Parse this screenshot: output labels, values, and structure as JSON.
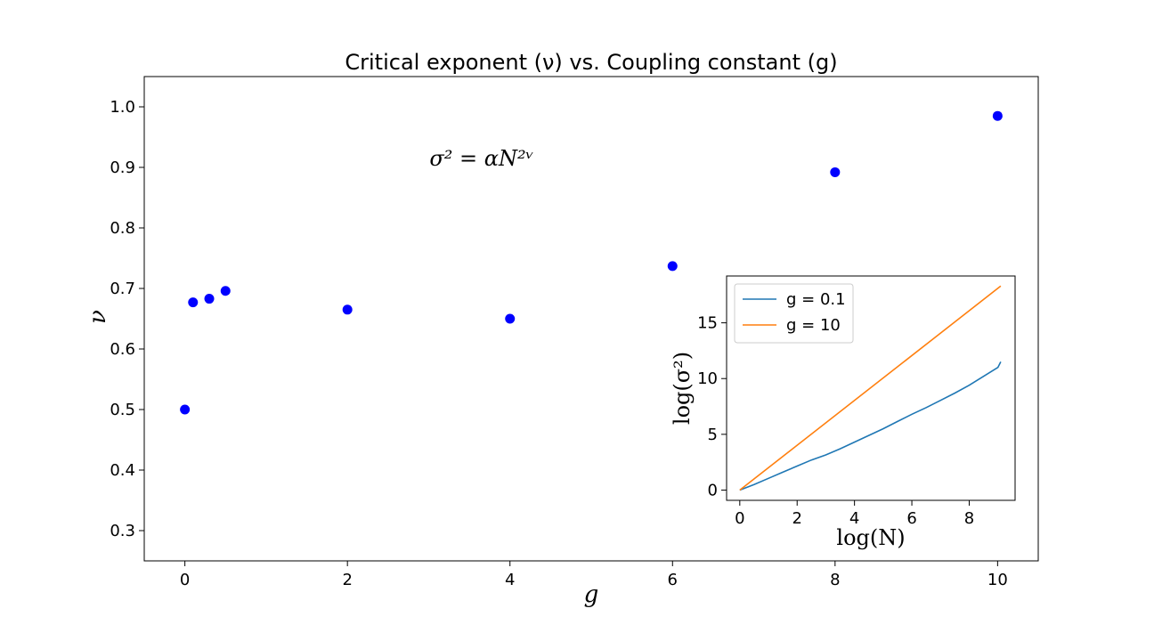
{
  "chart_data": [
    {
      "type": "scatter",
      "title": "Critical exponent (ν) vs. Coupling constant (g)",
      "xlabel": "g",
      "ylabel": "ν",
      "annotation": "σ² = αN²ᵛ",
      "xlim": [
        -0.5,
        10.5
      ],
      "ylim": [
        0.25,
        1.05
      ],
      "xticks": [
        0,
        2,
        4,
        6,
        8,
        10
      ],
      "yticks": [
        0.3,
        0.4,
        0.5,
        0.6,
        0.7,
        0.8,
        0.9,
        1.0
      ],
      "xtick_labels": [
        "0",
        "2",
        "4",
        "6",
        "8",
        "10"
      ],
      "ytick_labels": [
        "0.3",
        "0.4",
        "0.5",
        "0.6",
        "0.7",
        "0.8",
        "0.9",
        "1.0"
      ],
      "marker_color": "#0000ff",
      "grid": false,
      "points": {
        "x": [
          0,
          0.1,
          0.3,
          0.5,
          2,
          4,
          6,
          8,
          10
        ],
        "y": [
          0.5,
          0.677,
          0.683,
          0.696,
          0.665,
          0.65,
          0.737,
          0.892,
          0.985
        ]
      }
    },
    {
      "type": "line",
      "xlabel": "log(N)",
      "ylabel": "log(σ²)",
      "xlim": [
        -0.46,
        9.6
      ],
      "ylim": [
        -0.92,
        19.2
      ],
      "xticks": [
        0,
        2,
        4,
        6,
        8
      ],
      "yticks": [
        0,
        5,
        10,
        15
      ],
      "xtick_labels": [
        "0",
        "2",
        "4",
        "6",
        "8"
      ],
      "ytick_labels": [
        "0",
        "5",
        "10",
        "15"
      ],
      "legend_position": "upper-left",
      "grid": false,
      "series": [
        {
          "name": "g = 0.1",
          "color": "#1f77b4",
          "x": [
            0,
            0.5,
            1,
            1.5,
            2,
            2.5,
            3,
            3.5,
            4,
            4.5,
            5,
            5.5,
            6,
            6.5,
            7,
            7.5,
            8,
            8.5,
            9,
            9.1
          ],
          "y": [
            0,
            0.5,
            1.05,
            1.6,
            2.15,
            2.7,
            3.15,
            3.7,
            4.3,
            4.9,
            5.5,
            6.15,
            6.8,
            7.4,
            8.05,
            8.7,
            9.4,
            10.2,
            11.0,
            11.5
          ]
        },
        {
          "name": "g = 10",
          "color": "#ff7f0e",
          "x": [
            0,
            9.1
          ],
          "y": [
            0,
            18.3
          ]
        }
      ]
    }
  ]
}
